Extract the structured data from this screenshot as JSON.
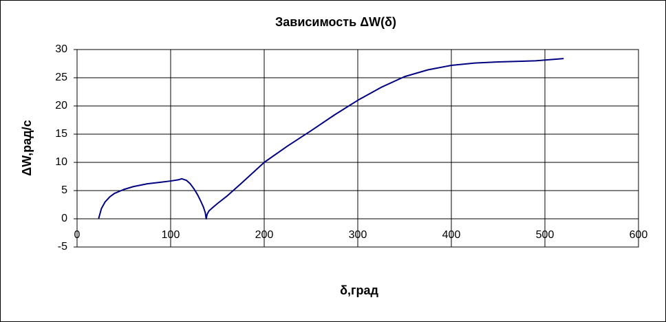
{
  "chart_data": {
    "type": "line",
    "title": "Зависимость ΔW(δ)",
    "x_label": "δ,град",
    "y_label": "ΔW,рад/с",
    "x": [
      23,
      26,
      30,
      35,
      40,
      50,
      60,
      75,
      90,
      100,
      108,
      112,
      117,
      121,
      125,
      129,
      132,
      135,
      137,
      138,
      139,
      141,
      145,
      150,
      160,
      175,
      200,
      225,
      250,
      275,
      300,
      325,
      350,
      375,
      400,
      425,
      450,
      490,
      520
    ],
    "series": [
      {
        "name": "ΔW",
        "color": "#000080",
        "values": [
          0,
          1.8,
          3,
          3.9,
          4.5,
          5.2,
          5.7,
          6.2,
          6.5,
          6.7,
          6.9,
          7.1,
          6.8,
          6.2,
          5.3,
          4.2,
          3.2,
          2.1,
          1.1,
          0,
          0.8,
          1.4,
          2,
          2.7,
          4,
          6.2,
          10,
          12.9,
          15.6,
          18.4,
          21,
          23.3,
          25.2,
          26.4,
          27.2,
          27.6,
          27.8,
          28,
          28.4
        ]
      }
    ],
    "xlim": [
      0,
      600
    ],
    "xticks": [
      0,
      100,
      200,
      300,
      400,
      500,
      600
    ],
    "ylim": [
      -5,
      30
    ],
    "yticks": [
      -5,
      0,
      5,
      10,
      15,
      20,
      25,
      30
    ],
    "grid": true
  }
}
